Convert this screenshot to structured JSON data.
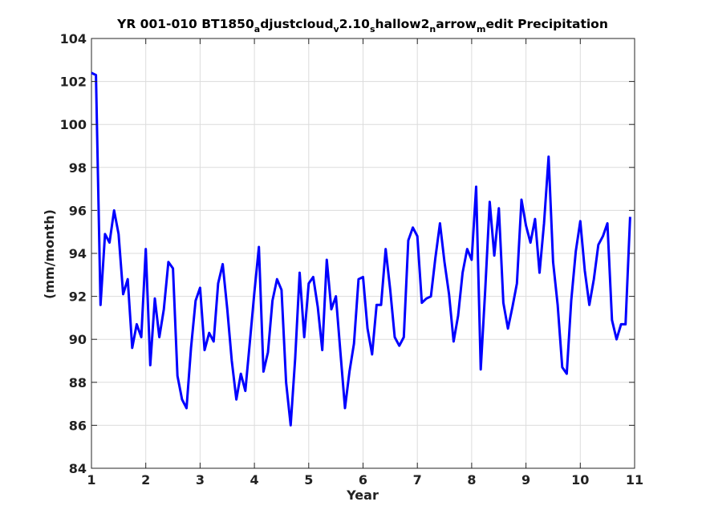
{
  "chart_data": {
    "type": "line",
    "title_parts": [
      {
        "text": "YR 001-010 BT1850",
        "sub": false
      },
      {
        "text": "a",
        "sub": true
      },
      {
        "text": "djustcloud",
        "sub": false
      },
      {
        "text": "v",
        "sub": true
      },
      {
        "text": "2.10",
        "sub": false
      },
      {
        "text": "s",
        "sub": true
      },
      {
        "text": "hallow2",
        "sub": false
      },
      {
        "text": "n",
        "sub": true
      },
      {
        "text": "arrow",
        "sub": false
      },
      {
        "text": "m",
        "sub": true
      },
      {
        "text": "edit Precipitation",
        "sub": false
      }
    ],
    "xlabel": "Year",
    "ylabel": "(mm/month)",
    "xlim": [
      1,
      11
    ],
    "ylim": [
      84,
      104
    ],
    "xticks": [
      1,
      2,
      3,
      4,
      5,
      6,
      7,
      8,
      9,
      10,
      11
    ],
    "yticks": [
      84,
      86,
      88,
      90,
      92,
      94,
      96,
      98,
      100,
      102,
      104
    ],
    "grid": true,
    "line_color": "#0000ff",
    "series": [
      {
        "x": [
          1.0,
          1.083,
          1.167,
          1.25,
          1.333,
          1.417,
          1.5,
          1.583,
          1.667,
          1.75,
          1.833,
          1.917,
          2.0,
          2.083,
          2.167,
          2.25,
          2.333,
          2.417,
          2.5,
          2.583,
          2.667,
          2.75,
          2.833,
          2.917,
          3.0,
          3.083,
          3.167,
          3.25,
          3.333,
          3.417,
          3.5,
          3.583,
          3.667,
          3.75,
          3.833,
          3.917,
          4.0,
          4.083,
          4.167,
          4.25,
          4.333,
          4.417,
          4.5,
          4.583,
          4.667,
          4.75,
          4.833,
          4.917,
          5.0,
          5.083,
          5.167,
          5.25,
          5.333,
          5.417,
          5.5,
          5.583,
          5.667,
          5.75,
          5.833,
          5.917,
          6.0,
          6.083,
          6.167,
          6.25,
          6.333,
          6.417,
          6.5,
          6.583,
          6.667,
          6.75,
          6.833,
          6.917,
          7.0,
          7.083,
          7.167,
          7.25,
          7.333,
          7.417,
          7.5,
          7.583,
          7.667,
          7.75,
          7.833,
          7.917,
          8.0,
          8.083,
          8.167,
          8.25,
          8.333,
          8.417,
          8.5,
          8.583,
          8.667,
          8.75,
          8.833,
          8.917,
          9.0,
          9.083,
          9.167,
          9.25,
          9.333,
          9.417,
          9.5,
          9.583,
          9.667,
          9.75,
          9.833,
          9.917,
          10.0,
          10.083,
          10.167,
          10.25,
          10.333,
          10.417,
          10.5,
          10.583,
          10.667,
          10.75,
          10.833,
          10.917
        ],
        "y": [
          102.4,
          102.3,
          91.6,
          94.9,
          94.5,
          96.0,
          94.9,
          92.1,
          92.8,
          89.6,
          90.7,
          90.1,
          94.2,
          88.8,
          91.9,
          90.1,
          91.4,
          93.6,
          93.3,
          88.3,
          87.2,
          86.8,
          89.6,
          91.8,
          92.4,
          89.5,
          90.3,
          89.9,
          92.6,
          93.5,
          91.4,
          89.0,
          87.2,
          88.4,
          87.6,
          89.9,
          92.2,
          94.3,
          88.5,
          89.4,
          91.8,
          92.8,
          92.3,
          88.0,
          86.0,
          89.1,
          93.1,
          90.1,
          92.6,
          92.9,
          91.5,
          89.5,
          93.7,
          91.4,
          92.0,
          89.4,
          86.8,
          88.5,
          89.8,
          92.8,
          92.9,
          90.5,
          89.3,
          91.6,
          91.6,
          94.2,
          92.3,
          90.1,
          89.7,
          90.1,
          94.6,
          95.2,
          94.8,
          91.7,
          91.9,
          92.0,
          93.8,
          95.4,
          93.6,
          92.1,
          89.9,
          91.1,
          93.1,
          94.2,
          93.7,
          97.1,
          88.6,
          92.3,
          96.4,
          93.9,
          96.1,
          91.7,
          90.5,
          91.5,
          92.6,
          96.5,
          95.3,
          94.5,
          95.6,
          93.1,
          95.4,
          98.5,
          93.6,
          91.6,
          88.7,
          88.4,
          91.8,
          94.1,
          95.5,
          93.2,
          91.6,
          92.8,
          94.4,
          94.8,
          95.4,
          90.9,
          90.0,
          90.7,
          90.7,
          95.7
        ]
      }
    ]
  }
}
